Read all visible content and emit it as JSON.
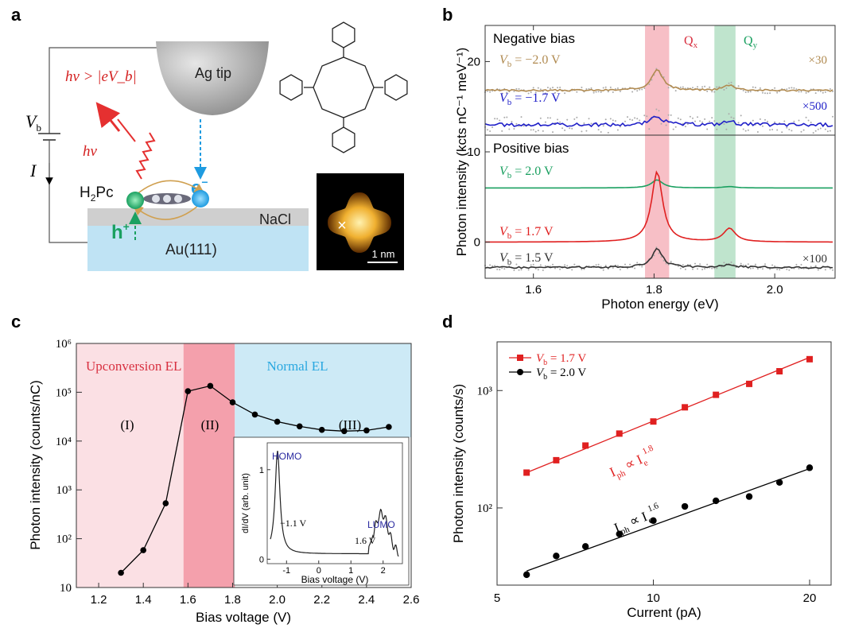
{
  "panels": {
    "a": "a",
    "b": "b",
    "c": "c",
    "d": "d"
  },
  "panel_a": {
    "tip": "Ag tip",
    "hv_cond": "hν > |eV_b|",
    "Vb": "V",
    "Vb_sub": "b",
    "I": "I",
    "hv": "hν",
    "e": "e",
    "e_sup": "−",
    "h": "h",
    "h_sup": "+",
    "h2pc": "H",
    "h2pc_sub": "2",
    "h2pc_rest": "Pc",
    "nacl": "NaCl",
    "au": "Au(111)",
    "scale": "1 nm",
    "colors": {
      "tip": "#9a9a9a",
      "nacl": "#cfcfcf",
      "au": "#bfe3f4",
      "photon": "#e53030",
      "electron": "#1e9be0",
      "hole": "#1aa060",
      "stm_bg": "#000000",
      "stm_mol": "#f0b030"
    }
  },
  "chart_data": [
    {
      "type": "line",
      "panel": "b",
      "xlabel": "Photon energy (eV)",
      "ylabel": "Photon intensity (kcts nC⁻¹ meV⁻¹)",
      "xlim": [
        1.52,
        2.1
      ],
      "ylim": [
        -4,
        24
      ],
      "xticks": [
        "1.6",
        "1.8",
        "2.0"
      ],
      "yticks": [
        "0",
        "10",
        "20"
      ],
      "groups": [
        "Negative bias",
        "Positive bias"
      ],
      "bands": [
        {
          "label": "Q",
          "sub": "x",
          "from": 1.785,
          "to": 1.825,
          "color": "#f4a4ae"
        },
        {
          "label": "Q",
          "sub": "y",
          "from": 1.9,
          "to": 1.935,
          "color": "#a4d8b8"
        }
      ],
      "series": [
        {
          "name": "V_b = −2.0 V",
          "label": "V",
          "sub": "b",
          "val": " = −2.0 V",
          "factor": "×30",
          "color": "#b08a50",
          "offset": 16.8,
          "amp": 2.4,
          "amp2": 0.6
        },
        {
          "name": "V_b = −1.7 V",
          "label": "V",
          "sub": "b",
          "val": " = −1.7 V",
          "factor": "×500",
          "color": "#2020c8",
          "offset": 13.0,
          "amp": 1.0,
          "amp2": 0.4
        },
        {
          "name": "V_b = 2.0 V",
          "label": "V",
          "sub": "b",
          "val": " = 2.0 V",
          "factor": "",
          "color": "#1aa060",
          "offset": 6.0,
          "amp": 0.9,
          "amp2": 0.15
        },
        {
          "name": "V_b = 1.7 V",
          "label": "V",
          "sub": "b",
          "val": " = 1.7 V",
          "factor": "",
          "color": "#e02020",
          "offset": 0.0,
          "amp": 7.8,
          "amp2": 1.5
        },
        {
          "name": "V_b = 1.5 V",
          "label": "V",
          "sub": "b",
          "val": " = 1.5 V",
          "factor": "×100",
          "color": "#333333",
          "offset": -2.8,
          "amp": 2.0,
          "amp2": 0.3
        }
      ]
    },
    {
      "type": "line",
      "panel": "c",
      "xlabel": "Bias voltage (V)",
      "ylabel": "Photon intensity (counts/nC)",
      "xlim": [
        1.1,
        2.6
      ],
      "ylog": true,
      "ylim": [
        10,
        1000000
      ],
      "xticks": [
        "1.2",
        "1.4",
        "1.6",
        "1.8",
        "2.0",
        "2.2",
        "2.4",
        "2.6"
      ],
      "yticks": [
        "10",
        "10²",
        "10³",
        "10⁴",
        "10⁵",
        "10⁶"
      ],
      "regions": [
        {
          "label": "Upconversion EL",
          "from": 1.1,
          "to": 1.58,
          "color": "#fbe0e4",
          "text_color": "#d83040"
        },
        {
          "label": "",
          "from": 1.58,
          "to": 1.81,
          "color": "#f4a0ac"
        },
        {
          "label": "Normal EL",
          "from": 1.81,
          "to": 2.6,
          "color": "#cdeaf6",
          "text_color": "#2aa8e0"
        }
      ],
      "roman": [
        "(I)",
        "(II)",
        "(III)"
      ],
      "x": [
        1.3,
        1.4,
        1.5,
        1.6,
        1.7,
        1.8,
        1.9,
        2.0,
        2.1,
        2.2,
        2.3,
        2.4,
        2.5
      ],
      "y": [
        20,
        58,
        530,
        105000,
        135000,
        62000,
        35000,
        25000,
        20000,
        17000,
        16000,
        16500,
        19500
      ],
      "inset": {
        "xlabel": "Bias voltage (V)",
        "ylabel": "dI/dV (arb. unit)",
        "xticks": [
          "-1",
          "0",
          "1",
          "2"
        ],
        "yticks": [
          "0",
          "1"
        ],
        "homo": "HOMO",
        "lumo": "LUMO",
        "v1": "−1.1 V",
        "v2": "1.6 V",
        "label_color": "#2a2aa0"
      }
    },
    {
      "type": "scatter",
      "panel": "d",
      "xlabel": "Current (pA)",
      "ylabel": "Photon intensity (counts/s)",
      "xlog": true,
      "ylog": true,
      "xlim": [
        5,
        22
      ],
      "ylim": [
        22,
        2600
      ],
      "xticks": [
        "5",
        "10",
        "20"
      ],
      "yticks": [
        "10²",
        "10³"
      ],
      "series": [
        {
          "name": "V_b = 1.7 V",
          "label": "V",
          "sub": "b",
          "val": " = 1.7 V",
          "color": "#e02020",
          "marker": "square",
          "x": [
            5.7,
            6.5,
            7.4,
            8.6,
            10.0,
            11.5,
            13.2,
            15.3,
            17.5,
            20.0
          ],
          "y": [
            200,
            255,
            340,
            430,
            545,
            720,
            920,
            1140,
            1460,
            1850
          ]
        },
        {
          "name": "V_b = 2.0 V",
          "label": "V",
          "sub": "b",
          "val": " = 2.0 V",
          "color": "#000000",
          "marker": "circle",
          "x": [
            5.7,
            6.5,
            7.4,
            8.6,
            10.0,
            11.5,
            13.2,
            15.3,
            17.5,
            20.0
          ],
          "y": [
            27,
            39,
            47,
            60,
            78,
            103,
            115,
            125,
            165,
            220
          ]
        }
      ],
      "fits": [
        {
          "label": "I",
          "sub1": "ph",
          "mid": " ∝ I",
          "sub2": "e",
          "sup": "1.8",
          "color": "#e02020",
          "slope": 1.8,
          "a": 200,
          "x0": 5.7
        },
        {
          "label": "I",
          "sub1": "ph",
          "mid": " ∝ I",
          "sub2": "e",
          "sup": "1.6",
          "color": "#000000",
          "slope": 1.6,
          "a": 29,
          "x0": 5.7
        }
      ]
    }
  ]
}
